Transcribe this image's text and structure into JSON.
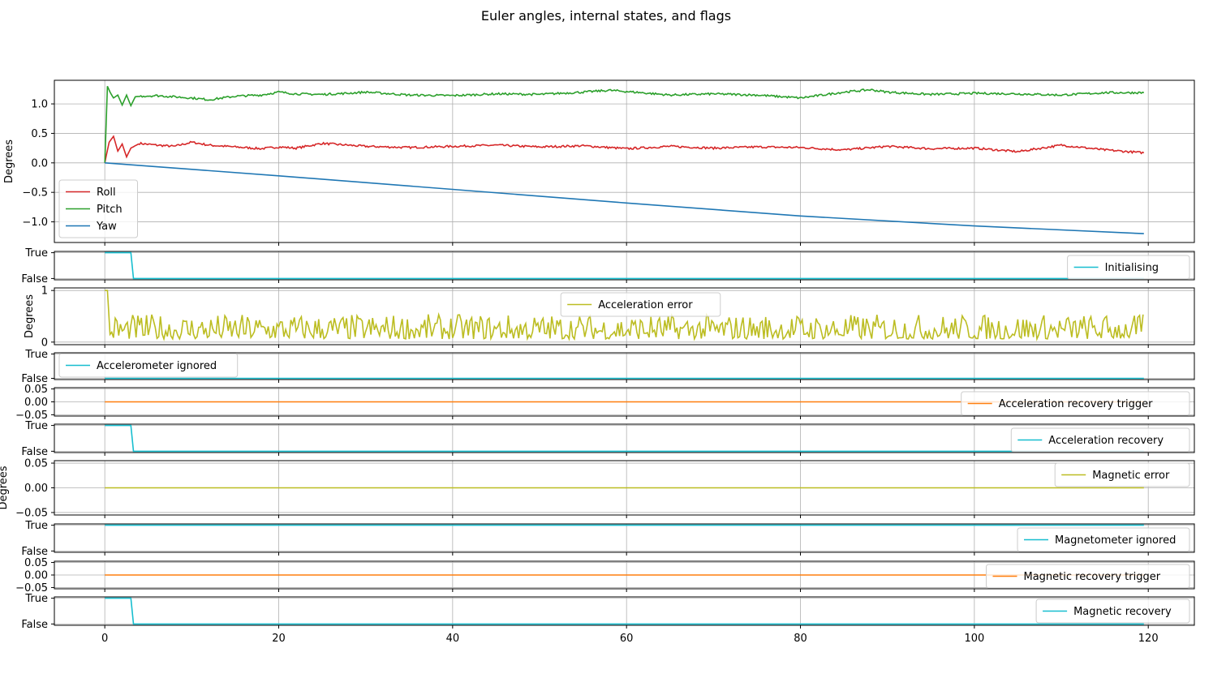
{
  "title": "Euler angles, internal states, and flags",
  "chart_data": {
    "type": "line",
    "shared_x": {
      "ticks": [
        0,
        20,
        40,
        60,
        80,
        100,
        120
      ],
      "xlim": [
        -5.8,
        125.3
      ]
    },
    "panels": [
      {
        "ylabel": "Degrees",
        "ylim": [
          -1.35,
          1.4
        ],
        "yticks": [
          1.0,
          0.5,
          0.0,
          -0.5,
          -1.0
        ],
        "yticklabels": [
          "1.0",
          "0.5",
          "0.0",
          "−0.5",
          "−1.0"
        ],
        "grid": true,
        "legend": "lower-left",
        "series": [
          {
            "name": "Roll",
            "color": "#d62728",
            "x": [
              0,
              0.5,
              1,
              1.5,
              2,
              2.5,
              3,
              4,
              6,
              8,
              10,
              12,
              15,
              18,
              20,
              22,
              25,
              28,
              30,
              35,
              40,
              45,
              50,
              55,
              60,
              65,
              70,
              75,
              80,
              85,
              90,
              95,
              100,
              105,
              110,
              115,
              119.5
            ],
            "y": [
              0,
              0.35,
              0.45,
              0.2,
              0.32,
              0.1,
              0.25,
              0.33,
              0.3,
              0.28,
              0.35,
              0.3,
              0.27,
              0.24,
              0.27,
              0.25,
              0.33,
              0.3,
              0.28,
              0.26,
              0.28,
              0.3,
              0.27,
              0.29,
              0.24,
              0.28,
              0.25,
              0.27,
              0.26,
              0.22,
              0.28,
              0.24,
              0.25,
              0.19,
              0.3,
              0.22,
              0.17
            ]
          },
          {
            "name": "Pitch",
            "color": "#2ca02c",
            "x": [
              0,
              0.3,
              0.6,
              1,
              1.5,
              2,
              2.5,
              3,
              3.5,
              4,
              6,
              8,
              10,
              12,
              15,
              18,
              20,
              22,
              25,
              28,
              30,
              35,
              40,
              45,
              50,
              55,
              58,
              60,
              65,
              70,
              75,
              80,
              85,
              88,
              90,
              95,
              100,
              105,
              110,
              115,
              119.5
            ],
            "y": [
              0,
              1.3,
              1.2,
              1.1,
              1.15,
              0.98,
              1.15,
              0.97,
              1.12,
              1.13,
              1.14,
              1.12,
              1.1,
              1.07,
              1.13,
              1.15,
              1.2,
              1.17,
              1.16,
              1.18,
              1.2,
              1.15,
              1.14,
              1.17,
              1.16,
              1.2,
              1.23,
              1.21,
              1.15,
              1.17,
              1.15,
              1.1,
              1.2,
              1.24,
              1.2,
              1.16,
              1.18,
              1.17,
              1.15,
              1.19,
              1.19
            ]
          },
          {
            "name": "Yaw",
            "color": "#1f77b4",
            "x": [
              0,
              20,
              40,
              60,
              80,
              100,
              119.5
            ],
            "y": [
              0,
              -0.22,
              -0.45,
              -0.68,
              -0.9,
              -1.07,
              -1.2
            ]
          }
        ]
      },
      {
        "ylim": [
          -0.05,
          1.05
        ],
        "yticks": [
          1,
          0
        ],
        "yticklabels": [
          "True",
          "False"
        ],
        "grid": true,
        "legend": "lower-right",
        "series": [
          {
            "name": "Initialising",
            "color": "#17becf",
            "x": [
              0,
              3.0,
              3.3,
              119.5
            ],
            "y": [
              1,
              1,
              0,
              0
            ]
          }
        ]
      },
      {
        "ylabel": "Degrees",
        "ylim": [
          -0.05,
          1.05
        ],
        "yticks": [
          1,
          0
        ],
        "yticklabels": [
          "1",
          "0"
        ],
        "grid": true,
        "legend": "upper-center",
        "series": [
          {
            "name": "Acceleration error",
            "color": "#bcbd22",
            "noise": true,
            "x": [
              0,
              0.3,
              0.6,
              119.5
            ],
            "y": [
              1,
              1.0,
              0.15,
              0.2
            ]
          }
        ]
      },
      {
        "ylim": [
          -0.05,
          1.05
        ],
        "yticks": [
          1,
          0
        ],
        "yticklabels": [
          "True",
          "False"
        ],
        "grid": true,
        "legend": "upper-left",
        "series": [
          {
            "name": "Accelerometer ignored",
            "color": "#17becf",
            "x": [
              0,
              119.5
            ],
            "y": [
              0,
              0
            ]
          }
        ]
      },
      {
        "ylim": [
          -0.055,
          0.055
        ],
        "yticks": [
          0.05,
          0.0,
          -0.05
        ],
        "yticklabels": [
          "0.05",
          "0.00",
          "−0.05"
        ],
        "grid": true,
        "legend": "lower-right",
        "series": [
          {
            "name": "Acceleration recovery trigger",
            "color": "#ff7f0e",
            "x": [
              0,
              119.5
            ],
            "y": [
              0,
              0
            ]
          }
        ]
      },
      {
        "ylim": [
          -0.05,
          1.05
        ],
        "yticks": [
          1,
          0
        ],
        "yticklabels": [
          "True",
          "False"
        ],
        "grid": true,
        "legend": "lower-right",
        "series": [
          {
            "name": "Acceleration recovery",
            "color": "#17becf",
            "x": [
              0,
              3.0,
              3.3,
              119.5
            ],
            "y": [
              1,
              1,
              0,
              0
            ]
          }
        ]
      },
      {
        "ylabel": "Degrees",
        "ylim": [
          -0.055,
          0.055
        ],
        "yticks": [
          0.05,
          0.0,
          -0.05
        ],
        "yticklabels": [
          "0.05",
          "0.00",
          "−0.05"
        ],
        "grid": true,
        "legend": "upper-right",
        "series": [
          {
            "name": "Magnetic error",
            "color": "#bcbd22",
            "x": [
              0,
              119.5
            ],
            "y": [
              0,
              0
            ]
          }
        ]
      },
      {
        "ylim": [
          -0.05,
          1.05
        ],
        "yticks": [
          1,
          0
        ],
        "yticklabels": [
          "True",
          "False"
        ],
        "grid": true,
        "legend": "lower-right",
        "series": [
          {
            "name": "Magnetometer ignored",
            "color": "#17becf",
            "x": [
              0,
              119.5
            ],
            "y": [
              1,
              1
            ]
          }
        ]
      },
      {
        "ylim": [
          -0.055,
          0.055
        ],
        "yticks": [
          0.05,
          0.0,
          -0.05
        ],
        "yticklabels": [
          "0.05",
          "0.00",
          "−0.05"
        ],
        "grid": true,
        "legend": "lower-right",
        "series": [
          {
            "name": "Magnetic recovery trigger",
            "color": "#ff7f0e",
            "x": [
              0,
              119.5
            ],
            "y": [
              0,
              0
            ]
          }
        ]
      },
      {
        "ylim": [
          -0.05,
          1.05
        ],
        "yticks": [
          1,
          0
        ],
        "yticklabels": [
          "True",
          "False"
        ],
        "grid": true,
        "legend": "upper-right",
        "series": [
          {
            "name": "Magnetic recovery",
            "color": "#17becf",
            "x": [
              0,
              3.0,
              3.3,
              119.5
            ],
            "y": [
              1,
              1,
              0,
              0
            ]
          }
        ]
      }
    ]
  }
}
